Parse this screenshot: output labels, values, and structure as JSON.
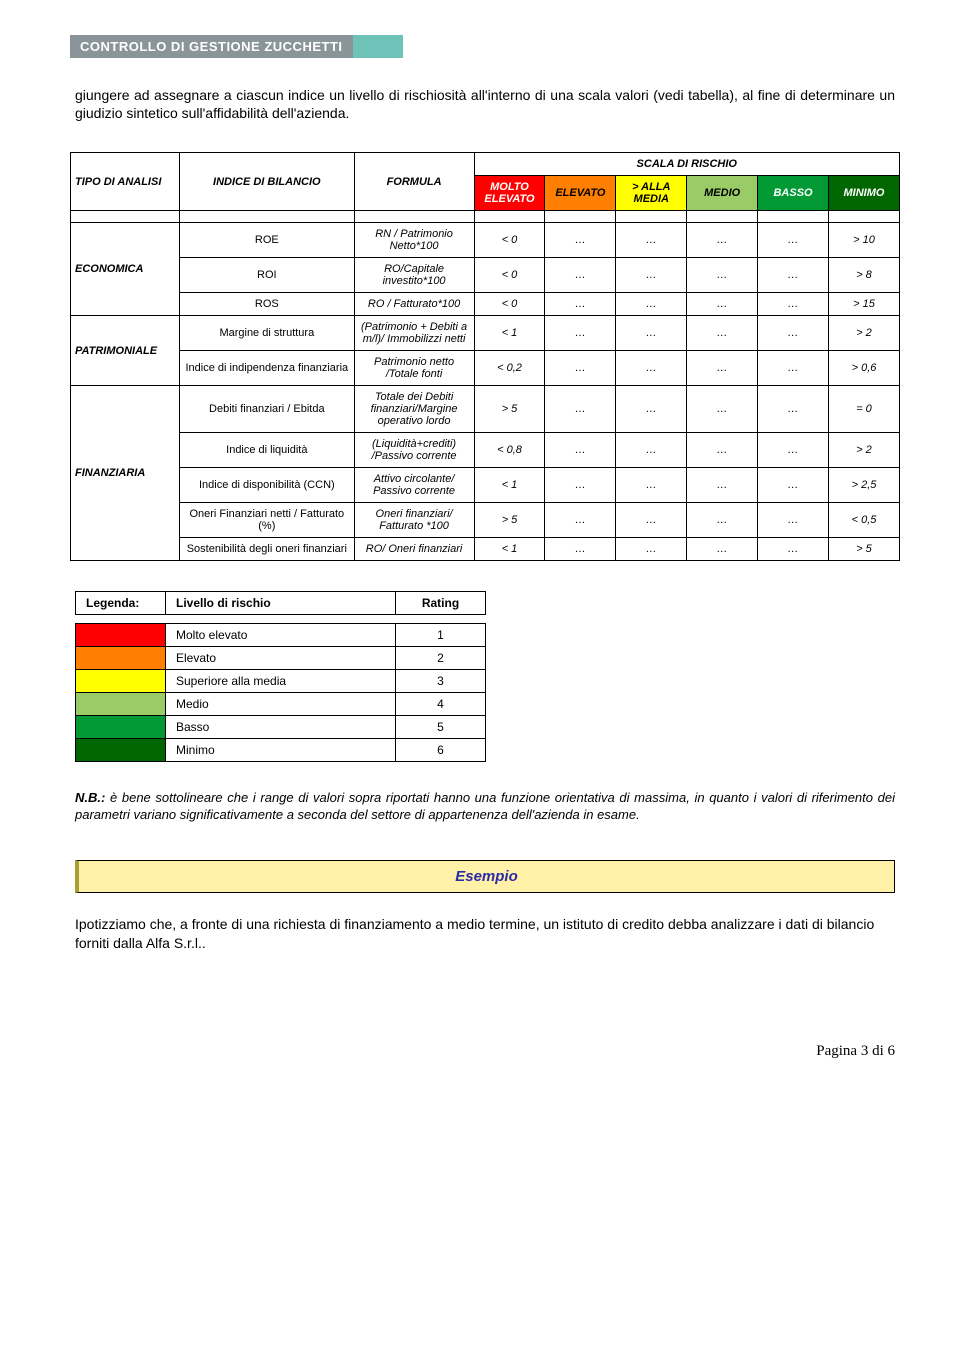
{
  "header": {
    "brand": "CONTROLLO DI GESTIONE ZUCCHETTI"
  },
  "intro": "giungere ad assegnare a ciascun indice un livello di rischiosità all'interno di una scala valori (vedi tabella), al fine di determinare un giudizio sintetico sull'affidabilità dell'azienda.",
  "colors": {
    "molto_elevato": "#ff0000",
    "elevato": "#ff7f00",
    "sup_media": "#ffff00",
    "medio": "#99cc66",
    "basso": "#009933",
    "minimo": "#006600",
    "header_gray": "#8a959a",
    "teal": "#6fc2b8",
    "esempio_bg": "#fff1a8",
    "esempio_border": "#a8a032"
  },
  "main_table": {
    "scala_caption": "SCALA DI RISCHIO",
    "hdr_tipo": "TIPO DI ANALISI",
    "hdr_indice": "INDICE DI BILANCIO",
    "hdr_formula": "FORMULA",
    "risk_headers": [
      "MOLTO ELEVATO",
      "ELEVATO",
      "> ALLA MEDIA",
      "MEDIO",
      "BASSO",
      "MINIMO"
    ],
    "groups": [
      {
        "tipo": "ECONOMICA",
        "rows": [
          {
            "indice": "ROE",
            "formula": "RN / Patrimonio Netto*100",
            "v": [
              "< 0",
              "…",
              "…",
              "…",
              "…",
              "> 10"
            ]
          },
          {
            "indice": "ROI",
            "formula": "RO/Capitale investito*100",
            "v": [
              "< 0",
              "…",
              "…",
              "…",
              "…",
              "> 8"
            ]
          },
          {
            "indice": "ROS",
            "formula": "RO / Fatturato*100",
            "v": [
              "< 0",
              "…",
              "…",
              "…",
              "…",
              "> 15"
            ]
          }
        ]
      },
      {
        "tipo": "PATRIMONIALE",
        "rows": [
          {
            "indice": "Margine di struttura",
            "formula": "(Patrimonio + Debiti a m/l)/ Immobilizzi netti",
            "v": [
              "< 1",
              "…",
              "…",
              "…",
              "…",
              "> 2"
            ]
          },
          {
            "indice": "Indice di indipendenza finanziaria",
            "formula": "Patrimonio netto /Totale fonti",
            "v": [
              "< 0,2",
              "…",
              "…",
              "…",
              "…",
              "> 0,6"
            ]
          }
        ]
      },
      {
        "tipo": "FINANZIARIA",
        "rows": [
          {
            "indice": "Debiti finanziari / Ebitda",
            "formula": "Totale dei Debiti finanziari/Margine operativo lordo",
            "v": [
              "> 5",
              "…",
              "…",
              "…",
              "…",
              "= 0"
            ]
          },
          {
            "indice": "Indice di liquidità",
            "formula": "(Liquidità+crediti) /Passivo corrente",
            "v": [
              "< 0,8",
              "…",
              "…",
              "…",
              "…",
              "> 2"
            ]
          },
          {
            "indice": "Indice di disponibilità (CCN)",
            "formula": "Attivo circolante/ Passivo corrente",
            "v": [
              "< 1",
              "…",
              "…",
              "…",
              "…",
              "> 2,5"
            ]
          },
          {
            "indice": "Oneri Finanziari netti / Fatturato (%)",
            "formula": "Oneri finanziari/ Fatturato *100",
            "v": [
              "> 5",
              "…",
              "…",
              "…",
              "…",
              "< 0,5"
            ]
          },
          {
            "indice": "Sostenibilità degli oneri finanziari",
            "formula": "RO/ Oneri finanziari",
            "v": [
              "< 1",
              "…",
              "…",
              "…",
              "…",
              "> 5"
            ]
          }
        ]
      }
    ]
  },
  "legend": {
    "header_label": "Legenda:",
    "header_level": "Livello di rischio",
    "header_rating": "Rating",
    "rows": [
      {
        "name": "Molto elevato",
        "rating": "1",
        "color": "#ff0000"
      },
      {
        "name": "Elevato",
        "rating": "2",
        "color": "#ff7f00"
      },
      {
        "name": "Superiore alla media",
        "rating": "3",
        "color": "#ffff00"
      },
      {
        "name": "Medio",
        "rating": "4",
        "color": "#99cc66"
      },
      {
        "name": "Basso",
        "rating": "5",
        "color": "#009933"
      },
      {
        "name": "Minimo",
        "rating": "6",
        "color": "#006600"
      }
    ]
  },
  "nb": {
    "prefix": "N.B.:",
    "text": " è bene sottolineare che i range di valori sopra riportati hanno una funzione orientativa di massima, in quanto i valori di riferimento dei parametri variano significativamente a seconda del settore di appartenenza dell'azienda in esame."
  },
  "esempio": {
    "title": "Esempio"
  },
  "closing": "Ipotizziamo che, a fronte di una richiesta di finanziamento a medio termine, un istituto di credito debba analizzare i dati di bilancio forniti dalla Alfa S.r.l..",
  "footer": "Pagina 3 di 6"
}
